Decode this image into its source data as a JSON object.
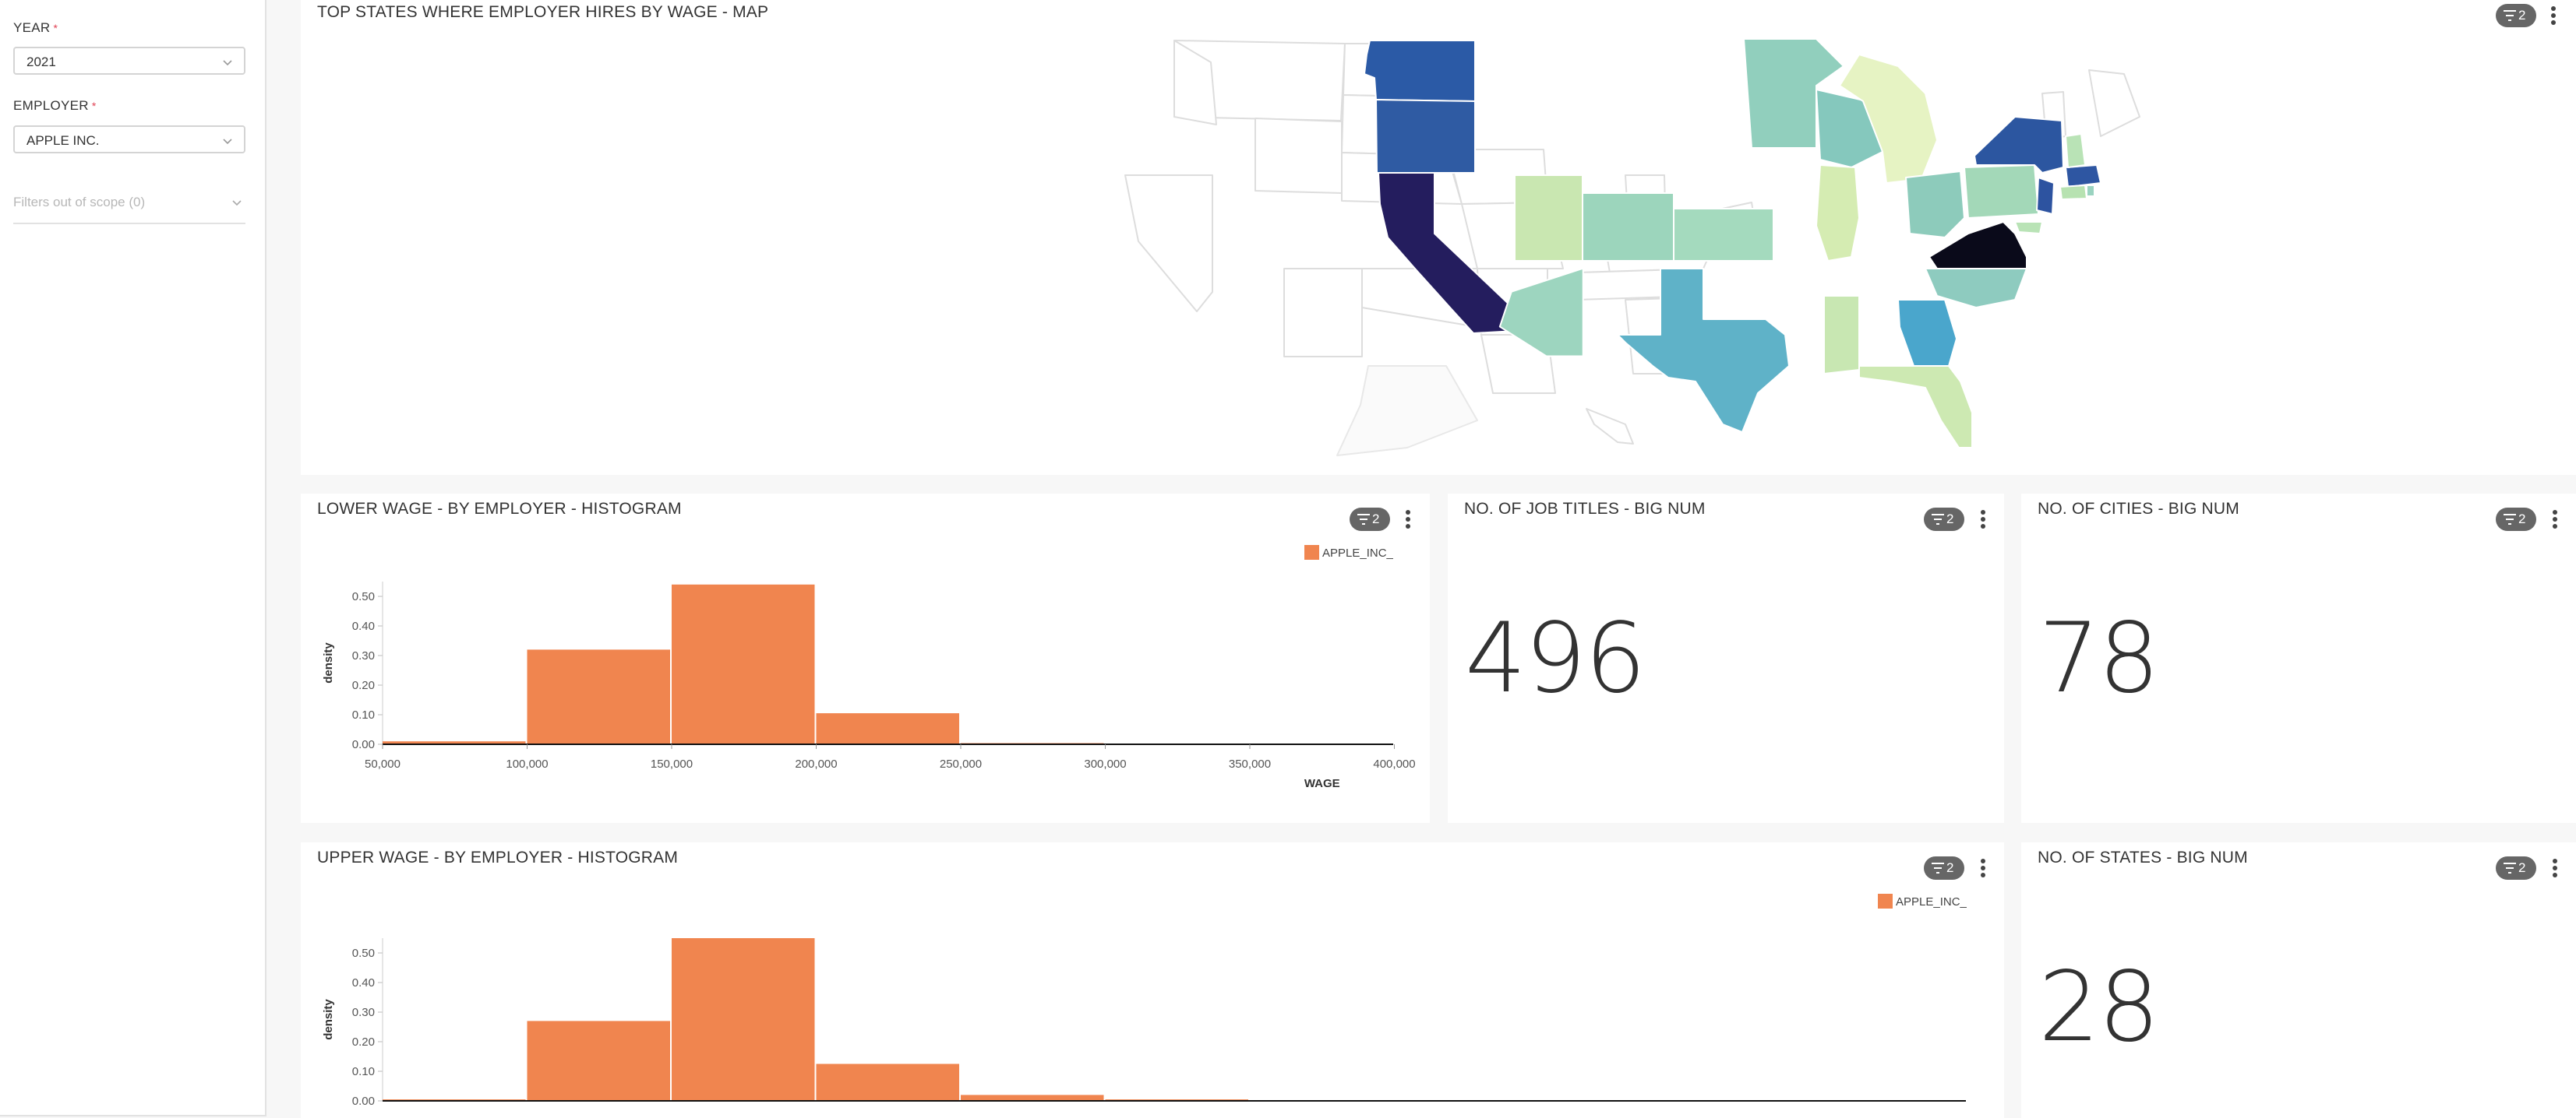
{
  "filters": {
    "year_label": "YEAR",
    "year_value": "2021",
    "employer_label": "EMPLOYER",
    "employer_value": "APPLE INC.",
    "required_mark": "*",
    "out_of_scope": "Filters out of scope (0)"
  },
  "panels": {
    "map": {
      "title": "TOP STATES WHERE EMPLOYER HIRES BY WAGE - MAP",
      "filter_count": "2"
    },
    "lower_hist": {
      "title": "LOWER WAGE - BY EMPLOYER - HISTOGRAM",
      "filter_count": "2",
      "legend": "APPLE_INC_"
    },
    "job_titles": {
      "title": "NO. OF JOB TITLES - BIG NUM",
      "filter_count": "2",
      "value": "496"
    },
    "cities": {
      "title": "NO. OF CITIES - BIG NUM",
      "filter_count": "2",
      "value": "78"
    },
    "upper_hist": {
      "title": "UPPER WAGE - BY EMPLOYER - HISTOGRAM",
      "filter_count": "2",
      "legend": "APPLE_INC_"
    },
    "states": {
      "title": "NO. OF STATES - BIG NUM",
      "filter_count": "2",
      "value": "28"
    }
  },
  "colors": {
    "bar": "#f0854f",
    "badge": "#666666",
    "required": "#e04355"
  },
  "icons": {
    "filter": "filter-icon",
    "menu": "more-vertical-icon",
    "chevron": "chevron-down-icon"
  },
  "chart_data": [
    {
      "type": "bar",
      "name": "lower_wage_histogram",
      "xlabel": "WAGE",
      "ylabel": "density",
      "x_ticks": [
        "50,000",
        "100,000",
        "150,000",
        "200,000",
        "250,000",
        "300,000",
        "350,000",
        "400,000"
      ],
      "y_ticks": [
        "0.00",
        "0.10",
        "0.20",
        "0.30",
        "0.40",
        "0.50"
      ],
      "ylim": [
        0,
        0.55
      ],
      "series": [
        {
          "name": "APPLE_INC_",
          "bins": [
            [
              50000,
              100000
            ],
            [
              100000,
              150000
            ],
            [
              150000,
              200000
            ],
            [
              200000,
              250000
            ],
            [
              250000,
              300000
            ]
          ],
          "values": [
            0.01,
            0.32,
            0.54,
            0.105,
            0.004
          ]
        }
      ]
    },
    {
      "type": "bar",
      "name": "upper_wage_histogram",
      "xlabel": "",
      "ylabel": "density",
      "y_ticks": [
        "0.00",
        "0.10",
        "0.20",
        "0.30",
        "0.40",
        "0.50"
      ],
      "ylim": [
        0,
        0.55
      ],
      "series": [
        {
          "name": "APPLE_INC_",
          "bins": [
            [
              50000,
              100000
            ],
            [
              100000,
              150000
            ],
            [
              150000,
              200000
            ],
            [
              200000,
              250000
            ],
            [
              250000,
              300000
            ],
            [
              300000,
              350000
            ]
          ],
          "values": [
            0.005,
            0.27,
            0.55,
            0.125,
            0.02,
            0.005
          ]
        }
      ]
    }
  ]
}
